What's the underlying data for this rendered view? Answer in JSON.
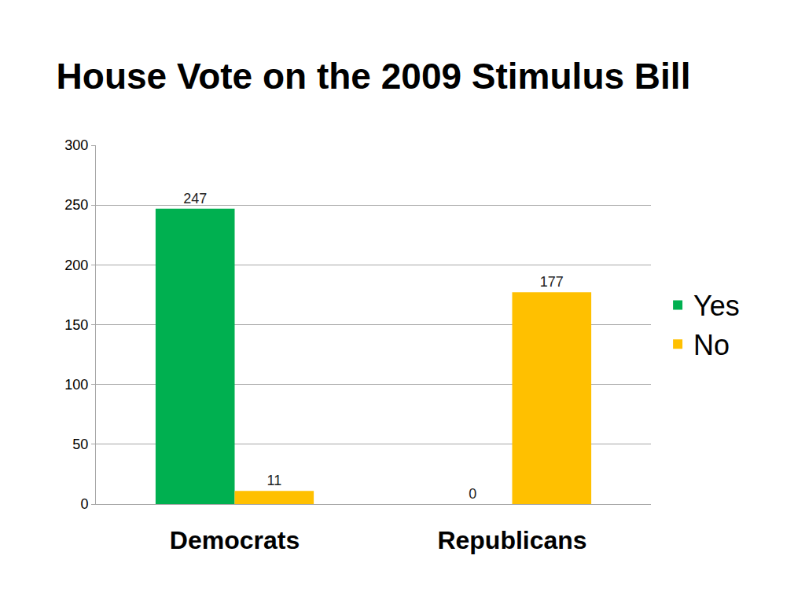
{
  "chart_data": {
    "type": "bar",
    "title": "House Vote on the 2009 Stimulus Bill",
    "categories": [
      "Democrats",
      "Republicans"
    ],
    "series": [
      {
        "name": "Yes",
        "color": "#00b050",
        "values": [
          247,
          0
        ]
      },
      {
        "name": "No",
        "color": "#ffc000",
        "values": [
          11,
          177
        ]
      }
    ],
    "ylim": [
      0,
      300
    ],
    "yticks": [
      0,
      50,
      100,
      150,
      200,
      250,
      300
    ],
    "grid": true,
    "legend": "right",
    "data_labels": true
  }
}
